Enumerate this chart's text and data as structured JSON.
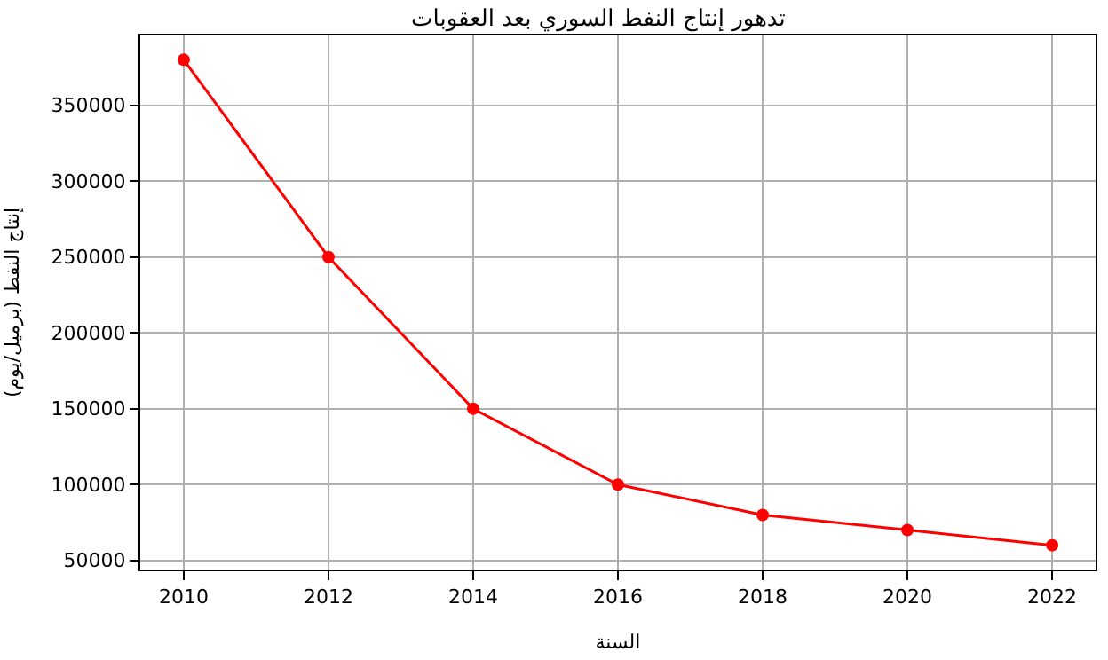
{
  "chart_data": {
    "type": "line",
    "title": "تدهور إنتاج النفط السوري بعد العقوبات",
    "xlabel": "السنة",
    "ylabel": "إنتاج النفط (برميل/يوم)",
    "x": [
      2010,
      2012,
      2014,
      2016,
      2018,
      2020,
      2022
    ],
    "series": [
      {
        "color": "#ff0000",
        "values": [
          380000,
          250000,
          150000,
          100000,
          80000,
          70000,
          60000
        ]
      }
    ],
    "xlim": [
      2009.4,
      2022.6
    ],
    "xticks": [
      2010,
      2012,
      2014,
      2016,
      2018,
      2020,
      2022
    ],
    "ylim": [
      44000,
      396000
    ],
    "yticks": [
      50000,
      100000,
      150000,
      200000,
      250000,
      300000,
      350000
    ],
    "grid": true,
    "marker": "circle",
    "line_style": "solid"
  }
}
